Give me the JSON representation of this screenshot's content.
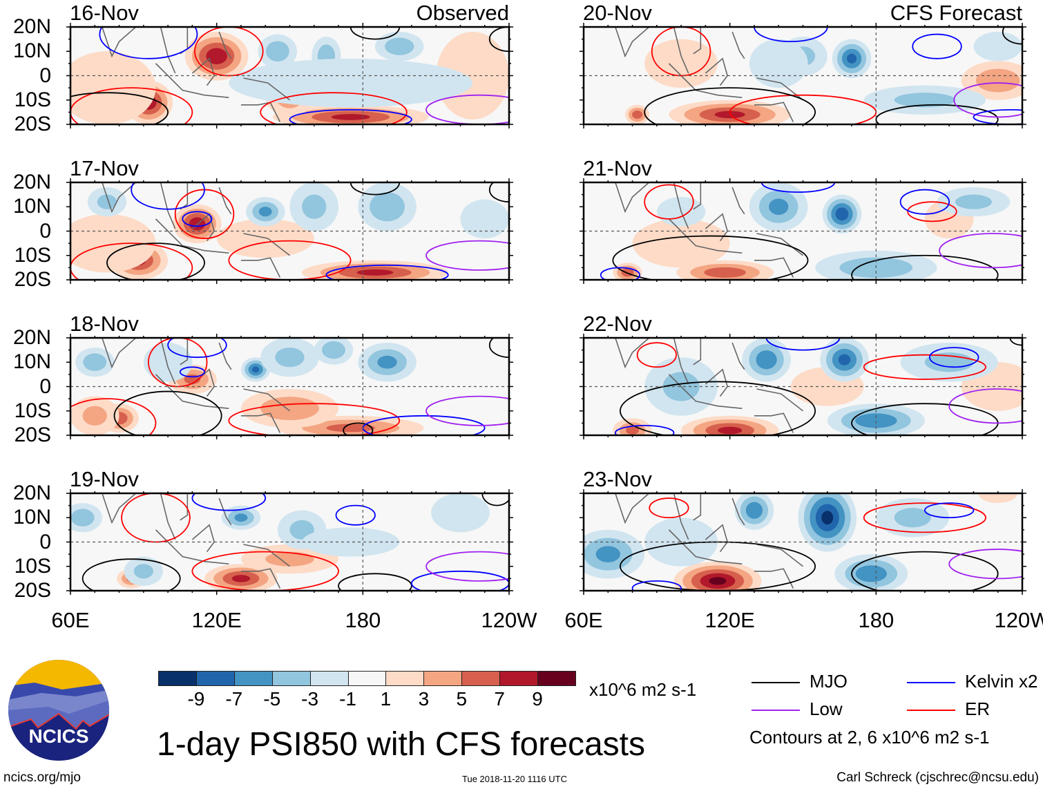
{
  "panels_left_title": "Observed",
  "panels_right_title": "CFS Forecast",
  "lat_labels": [
    "20N",
    "10N",
    "0",
    "10S",
    "20S"
  ],
  "lon_labels": [
    "60E",
    "120E",
    "180",
    "120W"
  ],
  "colorbar": {
    "colors": [
      "#08306b",
      "#2166ac",
      "#4393c3",
      "#92c5de",
      "#d1e5f0",
      "#f7f7f7",
      "#fddbc7",
      "#f4a582",
      "#d6604d",
      "#b2182b",
      "#67001f"
    ],
    "labels": [
      "-9",
      "-7",
      "-5",
      "-3",
      "-1",
      "1",
      "3",
      "5",
      "7",
      "9"
    ],
    "units": "x10^6 m2 s-1"
  },
  "title": "1-day PSI850 with CFS forecasts",
  "legend": {
    "items": [
      {
        "label": "MJO",
        "color": "#000000"
      },
      {
        "label": "Kelvin x2",
        "color": "#0000ff"
      },
      {
        "label": "Low",
        "color": "#a020f0"
      },
      {
        "label": "ER",
        "color": "#ff0000"
      }
    ],
    "note": "Contours at 2, 6 x10^6 m2 s-1"
  },
  "logo_text": "NCICS",
  "footer": {
    "url": "ncics.org/mjo",
    "timestamp": "Tue 2018-11-20 1116 UTC",
    "author": "Carl Schreck (cjschrec@ncsu.edu)"
  },
  "panels": [
    {
      "date": "16-Nov",
      "blobs": [
        [
          120,
          8,
          13,
          10,
          8
        ],
        [
          92,
          -11,
          10,
          9,
          8
        ],
        [
          175,
          -17,
          32,
          5,
          7
        ],
        [
          150,
          -8,
          10,
          9,
          4
        ],
        [
          75,
          -5,
          20,
          15,
          2
        ],
        [
          225,
          0,
          15,
          18,
          2
        ],
        [
          145,
          10,
          8,
          7,
          -4
        ],
        [
          165,
          8,
          6,
          8,
          -4
        ],
        [
          195,
          12,
          10,
          6,
          -4
        ],
        [
          175,
          -3,
          50,
          10,
          -2
        ]
      ],
      "contours": [
        [
          125,
          10,
          14,
          10,
          "#ff0000"
        ],
        [
          85,
          -15,
          25,
          10,
          "#ff0000"
        ],
        [
          168,
          -15,
          30,
          8,
          "#ff0000"
        ],
        [
          75,
          -15,
          25,
          8,
          "#000000"
        ],
        [
          185,
          20,
          10,
          5,
          "#000000"
        ],
        [
          240,
          15,
          8,
          5,
          "#000000"
        ],
        [
          92,
          17,
          20,
          10,
          "#0000ff"
        ],
        [
          175,
          -18,
          25,
          4,
          "#0000ff"
        ],
        [
          228,
          -14,
          22,
          6,
          "#a020f0"
        ]
      ]
    },
    {
      "date": "17-Nov",
      "blobs": [
        [
          112,
          3,
          10,
          8,
          8
        ],
        [
          88,
          -12,
          12,
          8,
          7
        ],
        [
          185,
          -17,
          30,
          5,
          7
        ],
        [
          140,
          -3,
          20,
          8,
          2
        ],
        [
          75,
          -5,
          20,
          12,
          2
        ],
        [
          75,
          12,
          8,
          6,
          -3
        ],
        [
          140,
          8,
          8,
          6,
          -5
        ],
        [
          160,
          10,
          10,
          10,
          -3
        ],
        [
          190,
          10,
          12,
          10,
          -4
        ],
        [
          230,
          5,
          10,
          8,
          -2
        ]
      ],
      "contours": [
        [
          115,
          7,
          12,
          10,
          "#ff0000"
        ],
        [
          85,
          -15,
          25,
          10,
          "#ff0000"
        ],
        [
          150,
          -12,
          25,
          8,
          "#ff0000"
        ],
        [
          95,
          -13,
          20,
          8,
          "#000000"
        ],
        [
          185,
          20,
          10,
          5,
          "#000000"
        ],
        [
          240,
          17,
          8,
          5,
          "#000000"
        ],
        [
          100,
          17,
          15,
          8,
          "#0000ff"
        ],
        [
          112,
          5,
          6,
          3,
          "#0000ff"
        ],
        [
          190,
          -18,
          25,
          4,
          "#0000ff"
        ],
        [
          228,
          -10,
          22,
          6,
          "#a020f0"
        ]
      ]
    },
    {
      "date": "18-Nov",
      "blobs": [
        [
          110,
          3,
          10,
          6,
          5
        ],
        [
          80,
          -13,
          8,
          6,
          6
        ],
        [
          175,
          -17,
          30,
          5,
          5
        ],
        [
          150,
          -9,
          20,
          8,
          4
        ],
        [
          70,
          -12,
          10,
          8,
          3
        ],
        [
          70,
          10,
          8,
          6,
          -4
        ],
        [
          136,
          7,
          6,
          5,
          -7
        ],
        [
          150,
          12,
          12,
          8,
          -3
        ],
        [
          168,
          15,
          8,
          6,
          -4
        ],
        [
          190,
          10,
          12,
          8,
          -5
        ],
        [
          100,
          10,
          10,
          8,
          -2
        ]
      ],
      "contours": [
        [
          104,
          10,
          12,
          10,
          "#ff0000"
        ],
        [
          75,
          -15,
          20,
          10,
          "#ff0000"
        ],
        [
          160,
          -14,
          35,
          7,
          "#ff0000"
        ],
        [
          100,
          -12,
          22,
          10,
          "#000000"
        ],
        [
          178,
          -18,
          6,
          3,
          "#000000"
        ],
        [
          240,
          17,
          8,
          5,
          "#000000"
        ],
        [
          112,
          17,
          12,
          5,
          "#0000ff"
        ],
        [
          110,
          6,
          5,
          2,
          "#0000ff"
        ],
        [
          205,
          -17,
          25,
          5,
          "#0000ff"
        ],
        [
          228,
          -10,
          22,
          6,
          "#a020f0"
        ]
      ]
    },
    {
      "date": "19-Nov",
      "blobs": [
        [
          130,
          -15,
          15,
          6,
          7
        ],
        [
          85,
          -15,
          6,
          4,
          5
        ],
        [
          150,
          -7,
          20,
          6,
          3
        ],
        [
          65,
          10,
          8,
          6,
          -4
        ],
        [
          130,
          10,
          8,
          5,
          -5
        ],
        [
          155,
          5,
          10,
          8,
          -3
        ],
        [
          175,
          0,
          20,
          6,
          -2
        ],
        [
          90,
          -12,
          8,
          6,
          -3
        ],
        [
          220,
          12,
          12,
          8,
          -2
        ]
      ],
      "contours": [
        [
          95,
          10,
          14,
          10,
          "#ff0000"
        ],
        [
          140,
          -12,
          30,
          8,
          "#ff0000"
        ],
        [
          85,
          -15,
          20,
          8,
          "#000000"
        ],
        [
          185,
          -18,
          15,
          5,
          "#000000"
        ],
        [
          235,
          20,
          6,
          5,
          "#000000"
        ],
        [
          125,
          18,
          15,
          5,
          "#0000ff"
        ],
        [
          177,
          11,
          8,
          4,
          "#0000ff"
        ],
        [
          220,
          -17,
          20,
          5,
          "#0000ff"
        ],
        [
          228,
          -10,
          22,
          6,
          "#a020f0"
        ]
      ]
    },
    {
      "date": "20-Nov",
      "blobs": [
        [
          120,
          -16,
          25,
          6,
          7
        ],
        [
          82,
          -16,
          5,
          4,
          6
        ],
        [
          100,
          5,
          15,
          10,
          2
        ],
        [
          230,
          -2,
          15,
          8,
          4
        ],
        [
          150,
          8,
          10,
          8,
          -3
        ],
        [
          170,
          7,
          8,
          8,
          -7
        ],
        [
          140,
          5,
          12,
          10,
          -2
        ],
        [
          200,
          -10,
          25,
          6,
          -3
        ],
        [
          230,
          12,
          10,
          6,
          -2
        ]
      ],
      "contours": [
        [
          100,
          10,
          12,
          10,
          "#ff0000"
        ],
        [
          150,
          -15,
          30,
          7,
          "#ff0000"
        ],
        [
          120,
          -15,
          35,
          10,
          "#000000"
        ],
        [
          205,
          -18,
          25,
          6,
          "#000000"
        ],
        [
          240,
          18,
          8,
          5,
          "#000000"
        ],
        [
          145,
          20,
          15,
          6,
          "#0000ff"
        ],
        [
          205,
          12,
          10,
          5,
          "#0000ff"
        ],
        [
          230,
          -10,
          18,
          7,
          "#a020f0"
        ],
        [
          235,
          -17,
          15,
          3,
          "#0000ff"
        ]
      ]
    },
    {
      "date": "21-Nov",
      "blobs": [
        [
          118,
          -17,
          20,
          5,
          6
        ],
        [
          78,
          -17,
          6,
          4,
          6
        ],
        [
          100,
          -5,
          20,
          10,
          2
        ],
        [
          210,
          5,
          10,
          8,
          2
        ],
        [
          140,
          10,
          12,
          10,
          -5
        ],
        [
          166,
          7,
          8,
          8,
          -8
        ],
        [
          180,
          -15,
          25,
          7,
          -4
        ],
        [
          220,
          12,
          15,
          6,
          -3
        ],
        [
          100,
          8,
          10,
          6,
          -2
        ]
      ],
      "contours": [
        [
          95,
          12,
          10,
          7,
          "#ff0000"
        ],
        [
          203,
          8,
          10,
          4,
          "#ff0000"
        ],
        [
          112,
          -12,
          40,
          10,
          "#000000"
        ],
        [
          200,
          -18,
          30,
          8,
          "#000000"
        ],
        [
          148,
          20,
          15,
          4,
          "#0000ff"
        ],
        [
          200,
          12,
          10,
          5,
          "#0000ff"
        ],
        [
          75,
          -18,
          8,
          3,
          "#0000ff"
        ],
        [
          228,
          -8,
          22,
          7,
          "#a020f0"
        ]
      ]
    },
    {
      "date": "22-Nov",
      "blobs": [
        [
          120,
          -18,
          20,
          6,
          7
        ],
        [
          80,
          -18,
          8,
          5,
          5
        ],
        [
          160,
          0,
          15,
          8,
          2
        ],
        [
          230,
          0,
          15,
          10,
          2
        ],
        [
          135,
          11,
          10,
          9,
          -6
        ],
        [
          167,
          11,
          10,
          9,
          -7
        ],
        [
          100,
          0,
          15,
          12,
          -3
        ],
        [
          180,
          -14,
          20,
          7,
          -6
        ],
        [
          210,
          10,
          20,
          8,
          -3
        ]
      ],
      "contours": [
        [
          90,
          13,
          8,
          5,
          "#ff0000"
        ],
        [
          200,
          8,
          25,
          5,
          "#ff0000"
        ],
        [
          115,
          -10,
          40,
          12,
          "#000000"
        ],
        [
          200,
          -15,
          30,
          8,
          "#000000"
        ],
        [
          240,
          20,
          5,
          3,
          "#000000"
        ],
        [
          150,
          20,
          15,
          5,
          "#0000ff"
        ],
        [
          212,
          12,
          10,
          4,
          "#0000ff"
        ],
        [
          85,
          -19,
          12,
          3,
          "#0000ff"
        ],
        [
          230,
          -8,
          20,
          7,
          "#a020f0"
        ]
      ]
    },
    {
      "date": "23-Nov",
      "blobs": [
        [
          115,
          -16,
          18,
          8,
          9
        ],
        [
          230,
          20,
          8,
          4,
          2
        ],
        [
          160,
          10,
          12,
          14,
          -9
        ],
        [
          130,
          13,
          8,
          8,
          -6
        ],
        [
          70,
          -5,
          15,
          10,
          -5
        ],
        [
          178,
          -13,
          15,
          8,
          -6
        ],
        [
          195,
          10,
          15,
          8,
          -3
        ],
        [
          100,
          0,
          15,
          10,
          -2
        ]
      ],
      "contours": [
        [
          95,
          14,
          8,
          4,
          "#ff0000"
        ],
        [
          200,
          10,
          25,
          6,
          "#ff0000"
        ],
        [
          115,
          -10,
          40,
          10,
          "#000000"
        ],
        [
          200,
          -13,
          30,
          9,
          "#000000"
        ],
        [
          90,
          -19,
          10,
          3,
          "#0000ff"
        ],
        [
          210,
          13,
          10,
          3,
          "#0000ff"
        ],
        [
          230,
          -9,
          20,
          6,
          "#a020f0"
        ]
      ]
    }
  ]
}
